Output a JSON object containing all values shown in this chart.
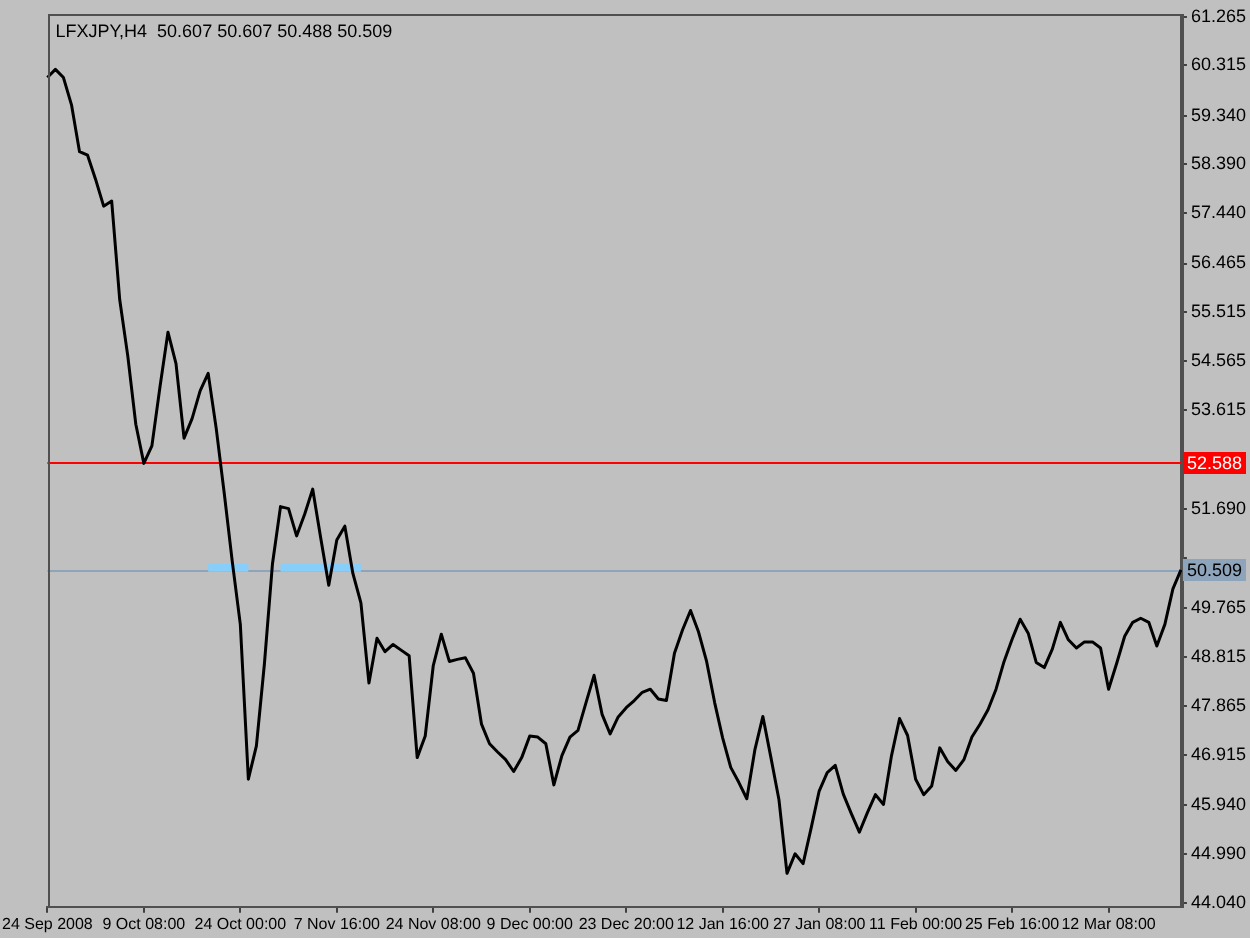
{
  "chart_data": {
    "type": "line",
    "title": "LFXJPY,H4  50.607 50.607 50.488 50.509",
    "categories": [
      "24 Sep 2008",
      null,
      null,
      null,
      null,
      null,
      null,
      null,
      null,
      null,
      null,
      null,
      "9 Oct 08:00",
      null,
      null,
      null,
      null,
      null,
      null,
      null,
      null,
      null,
      null,
      null,
      "24 Oct 00:00",
      null,
      null,
      null,
      null,
      null,
      null,
      null,
      null,
      null,
      null,
      null,
      "7 Nov 16:00",
      null,
      null,
      null,
      null,
      null,
      null,
      null,
      null,
      null,
      null,
      null,
      "24 Nov 08:00",
      null,
      null,
      null,
      null,
      null,
      null,
      null,
      null,
      null,
      null,
      null,
      "9 Dec 00:00",
      null,
      null,
      null,
      null,
      null,
      null,
      null,
      null,
      null,
      null,
      null,
      "23 Dec 20:00",
      null,
      null,
      null,
      null,
      null,
      null,
      null,
      null,
      null,
      null,
      null,
      "12 Jan 16:00",
      null,
      null,
      null,
      null,
      null,
      null,
      null,
      null,
      null,
      null,
      null,
      "27 Jan 08:00",
      null,
      null,
      null,
      null,
      null,
      null,
      null,
      null,
      null,
      null,
      null,
      "11 Feb 00:00",
      null,
      null,
      null,
      null,
      null,
      null,
      null,
      null,
      null,
      null,
      null,
      "25 Feb 16:00",
      null,
      null,
      null,
      null,
      null,
      null,
      null,
      null,
      null,
      null,
      null,
      "12 Mar 08:00",
      null,
      null,
      null,
      null,
      null,
      null,
      null,
      null,
      null
    ],
    "series": [
      {
        "color": "#000000",
        "values": [
          60.08,
          60.24,
          60.08,
          59.55,
          58.64,
          58.57,
          58.1,
          57.58,
          57.68,
          55.76,
          54.67,
          53.34,
          52.58,
          52.92,
          54.06,
          55.13,
          54.52,
          53.07,
          53.45,
          53.99,
          54.33,
          53.26,
          52.0,
          50.67,
          49.45,
          46.44,
          47.09,
          48.69,
          50.63,
          51.74,
          51.7,
          51.17,
          51.59,
          52.08,
          51.13,
          50.21,
          51.09,
          51.36,
          50.44,
          49.87,
          48.31,
          49.18,
          48.92,
          49.06,
          48.95,
          48.84,
          46.86,
          47.28,
          48.65,
          49.26,
          48.73,
          48.77,
          48.8,
          48.5,
          47.51,
          47.13,
          46.97,
          46.82,
          46.59,
          46.86,
          47.28,
          47.26,
          47.13,
          46.33,
          46.9,
          47.26,
          47.39,
          47.93,
          48.46,
          47.7,
          47.32,
          47.65,
          47.83,
          47.97,
          48.13,
          48.19,
          48.0,
          47.97,
          48.89,
          49.34,
          49.72,
          49.3,
          48.73,
          47.93,
          47.24,
          46.67,
          46.38,
          46.06,
          47.01,
          47.66,
          46.86,
          46.04,
          44.61,
          44.99,
          44.8,
          45.49,
          46.21,
          46.57,
          46.71,
          46.15,
          45.77,
          45.41,
          45.79,
          46.14,
          45.95,
          46.9,
          47.62,
          47.29,
          46.44,
          46.14,
          46.31,
          47.05,
          46.78,
          46.61,
          46.82,
          47.26,
          47.51,
          47.79,
          48.19,
          48.73,
          49.16,
          49.55,
          49.28,
          48.71,
          48.61,
          48.97,
          49.49,
          49.15,
          48.99,
          49.11,
          49.11,
          48.99,
          48.19,
          48.69,
          49.22,
          49.49,
          49.57,
          49.49,
          49.03,
          49.45,
          50.14,
          50.51
        ]
      },
      {
        "color": "#87cefa",
        "values": [
          null,
          null,
          null,
          null,
          null,
          null,
          null,
          null,
          null,
          null,
          null,
          null,
          null,
          null,
          null,
          null,
          null,
          null,
          null,
          null,
          50.55,
          50.55,
          50.55,
          50.55,
          50.55,
          50.55,
          null,
          null,
          null,
          50.55,
          50.55,
          50.55,
          50.55,
          50.55,
          50.55,
          50.55,
          50.55,
          50.55,
          50.55,
          50.55,
          null,
          null,
          null,
          null,
          null,
          null,
          null,
          null,
          null,
          null,
          null,
          null,
          null,
          null,
          null,
          null,
          null,
          null,
          null,
          null,
          null,
          null,
          null,
          null,
          null,
          null,
          null,
          null,
          null,
          null,
          null,
          null,
          null,
          null,
          null,
          null,
          null,
          null,
          null,
          null,
          null,
          null,
          null,
          null,
          null,
          null,
          null,
          null,
          null,
          null,
          null,
          null,
          null,
          null,
          null,
          null,
          null,
          null,
          null,
          null,
          null,
          null,
          null,
          null,
          null,
          null,
          null,
          null,
          null,
          null,
          null,
          null,
          null,
          null,
          null,
          null,
          null,
          null,
          null,
          null,
          null,
          null,
          null,
          null,
          null,
          null,
          null,
          null,
          null,
          null,
          null,
          null,
          null,
          null,
          null,
          null,
          null,
          null,
          null,
          null,
          null,
          null
        ]
      }
    ],
    "ylim": [
      43.96,
      61.3
    ],
    "yticks": [
      61.265,
      60.315,
      {
        "value": 59.34,
        "label": "59.340"
      },
      {
        "value": 58.39,
        "label": "58.390"
      },
      {
        "value": 57.44,
        "label": "57.440"
      },
      56.465,
      55.515,
      54.565,
      53.615,
      {
        "value": 51.69,
        "label": "51.690"
      },
      {
        "value": 50.74,
        "label": null
      },
      49.765,
      48.815,
      47.865,
      46.915,
      {
        "value": 45.94,
        "label": "45.940"
      },
      {
        "value": 44.99,
        "label": "44.990"
      },
      {
        "value": 44.04,
        "label": "44.040"
      }
    ],
    "ref_lines": [
      {
        "axis": "y",
        "value": 52.588,
        "label": "52.588",
        "color": "#ff0000"
      },
      {
        "axis": "y",
        "value": 50.509,
        "label": "50.509",
        "color": "#8ea4ba"
      }
    ],
    "marker": "none"
  }
}
